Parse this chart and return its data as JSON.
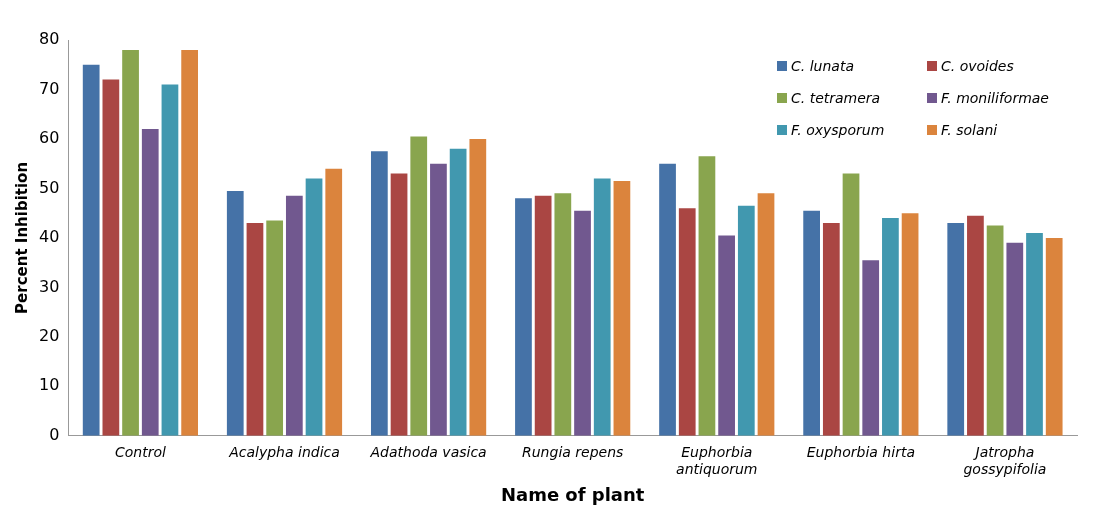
{
  "chart_data": {
    "type": "bar",
    "xlabel": "Name of plant",
    "ylabel": "Percent Inhibition",
    "categories": [
      "Control",
      "Acalypha indica",
      "Adathoda vasica",
      "Rungia repens",
      "Euphorbia antiquorum",
      "Euphorbia hirta",
      "Jatropha gossypifolia"
    ],
    "ylim": [
      0,
      80
    ],
    "yticks": [
      0,
      10,
      20,
      30,
      40,
      50,
      60,
      70,
      80
    ],
    "grid": false,
    "legend": "top right",
    "series": [
      {
        "name": "C. lunata",
        "color": "#4572a7",
        "values": [
          75,
          49.5,
          57.5,
          48,
          55,
          45.5,
          43
        ]
      },
      {
        "name": "C. ovoides",
        "color": "#aa4643",
        "values": [
          72,
          43,
          53,
          48.5,
          46,
          43,
          44.5
        ]
      },
      {
        "name": "C. tetramera",
        "color": "#89a54e",
        "values": [
          78,
          43.5,
          60.5,
          49,
          56.5,
          53,
          42.5
        ]
      },
      {
        "name": "F. moniliformae",
        "color": "#71588f",
        "values": [
          62,
          48.5,
          55,
          45.5,
          40.5,
          35.5,
          39
        ]
      },
      {
        "name": "F. oxysporum",
        "color": "#4198af",
        "values": [
          71,
          52,
          58,
          52,
          46.5,
          44,
          41
        ]
      },
      {
        "name": "F. solani",
        "color": "#db843d",
        "values": [
          78,
          54,
          60,
          51.5,
          49,
          45,
          40
        ]
      }
    ]
  }
}
